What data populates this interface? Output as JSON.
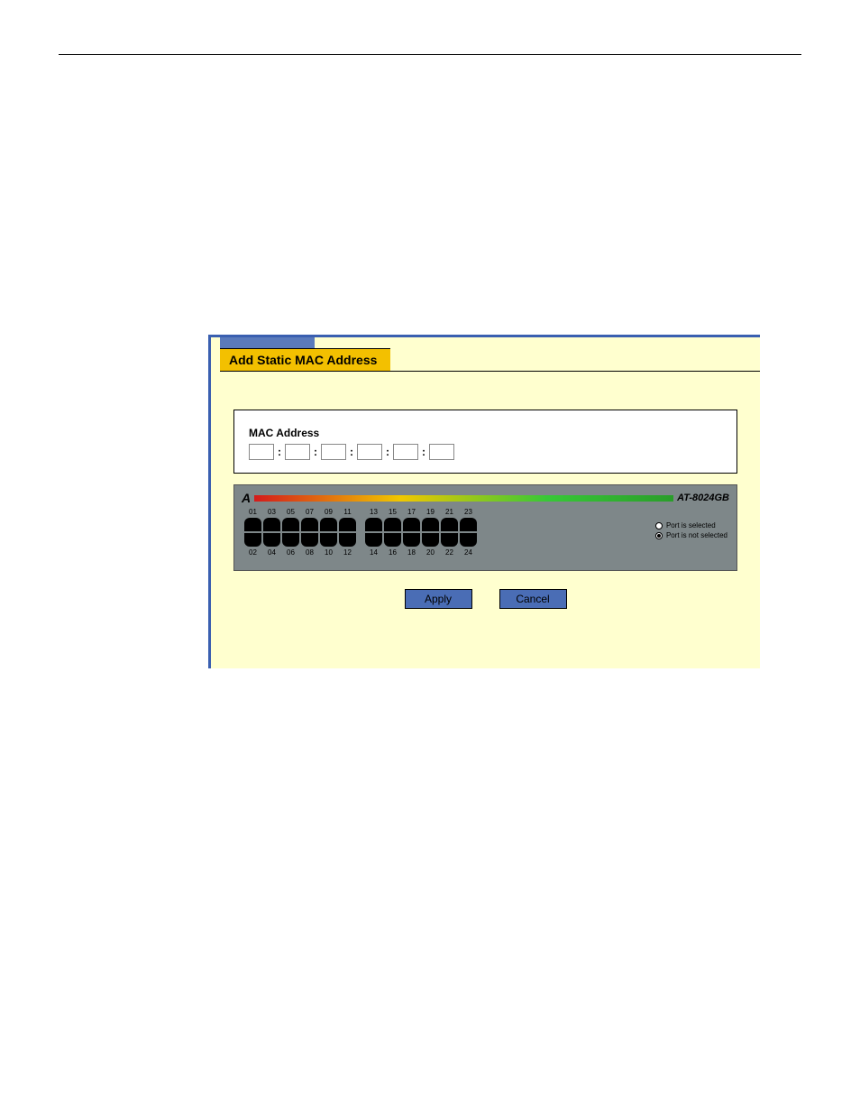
{
  "dialog": {
    "title": "Add Static MAC Address",
    "mac_label": "MAC Address"
  },
  "mac": {
    "octets": [
      "",
      "",
      "",
      "",
      "",
      ""
    ]
  },
  "switch": {
    "model": "AT-8024GB",
    "logo": "A",
    "port_count": 24,
    "top_labels_left": [
      "01",
      "03",
      "05",
      "07",
      "09",
      "11"
    ],
    "top_labels_right": [
      "13",
      "15",
      "17",
      "19",
      "21",
      "23"
    ],
    "bottom_labels_left": [
      "02",
      "04",
      "06",
      "08",
      "10",
      "12"
    ],
    "bottom_labels_right": [
      "14",
      "16",
      "18",
      "20",
      "22",
      "24"
    ],
    "legend_selected": "Port is selected",
    "legend_not_selected": "Port is not selected"
  },
  "buttons": {
    "apply": "Apply",
    "cancel": "Cancel"
  }
}
